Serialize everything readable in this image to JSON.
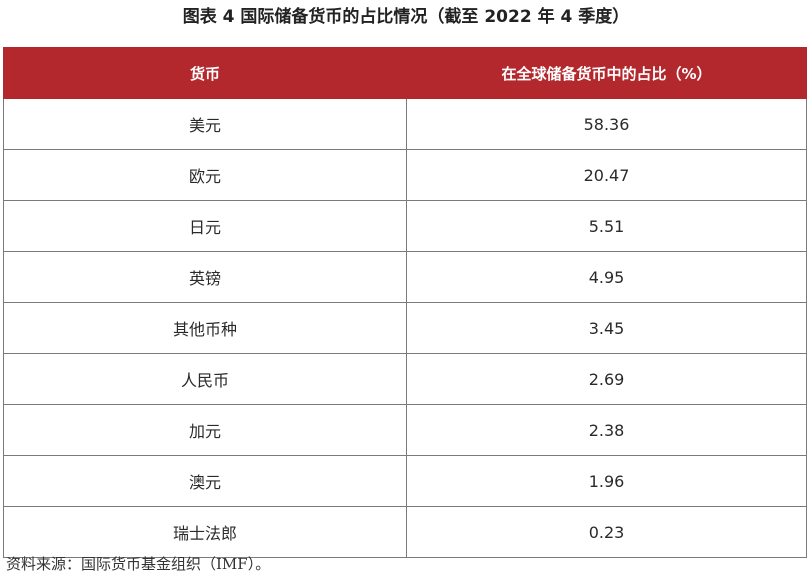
{
  "title": "图表 4  国际储备货币的占比情况（截至 2022 年 4 季度）",
  "table": {
    "headers": [
      "货币",
      "在全球储备货币中的占比（%）"
    ],
    "rows": [
      [
        "美元",
        "58.36"
      ],
      [
        "欧元",
        "20.47"
      ],
      [
        "日元",
        "5.51"
      ],
      [
        "英镑",
        "4.95"
      ],
      [
        "其他币种",
        "3.45"
      ],
      [
        "人民币",
        "2.69"
      ],
      [
        "加元",
        "2.38"
      ],
      [
        "澳元",
        "1.96"
      ],
      [
        "瑞士法郎",
        "0.23"
      ]
    ]
  },
  "source": "资料来源：国际货币基金组织（IMF）。",
  "colors": {
    "header_bg": "#b3282d",
    "header_text": "#ffffff",
    "border": "#7a7a7a"
  }
}
